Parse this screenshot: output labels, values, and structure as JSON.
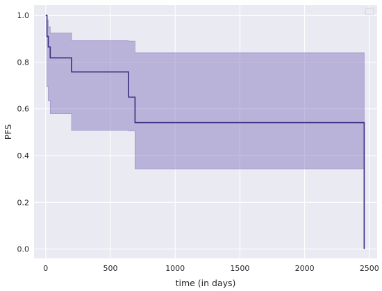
{
  "chart_data": {
    "type": "line",
    "title": "",
    "xlabel": "time (in days)",
    "ylabel": "PFS",
    "xlim": [
      -90,
      2560
    ],
    "ylim": [
      -0.04,
      1.045
    ],
    "xticks": [
      0,
      500,
      1000,
      1500,
      2000,
      2500
    ],
    "yticks": [
      0.0,
      0.2,
      0.4,
      0.6,
      0.8,
      1.0
    ],
    "xtick_labels": [
      "0",
      "500",
      "1000",
      "1500",
      "2000",
      "2500"
    ],
    "ytick_labels": [
      "0.0",
      "0.2",
      "0.4",
      "0.6",
      "0.8",
      "1.0"
    ],
    "grid": true,
    "legend": "top-right (empty)",
    "series": [
      {
        "x": [
          0,
          10,
          20,
          35,
          200,
          640,
          690,
          2460,
          2460
        ],
        "y": [
          1.0,
          0.91,
          0.865,
          0.818,
          0.758,
          0.65,
          0.541,
          0.541,
          0.0
        ],
        "ci_upper": [
          1.0,
          0.98,
          0.95,
          0.925,
          0.892,
          0.89,
          0.84,
          0.772,
          0.772
        ],
        "ci_lower": [
          1.0,
          0.695,
          0.635,
          0.58,
          0.508,
          0.506,
          0.343,
          0.233,
          0.233
        ]
      }
    ],
    "colors": {
      "line": "#3b2a82",
      "band": "#8a7cc0",
      "background": "#eaeaf2",
      "grid": "#ffffff"
    }
  }
}
